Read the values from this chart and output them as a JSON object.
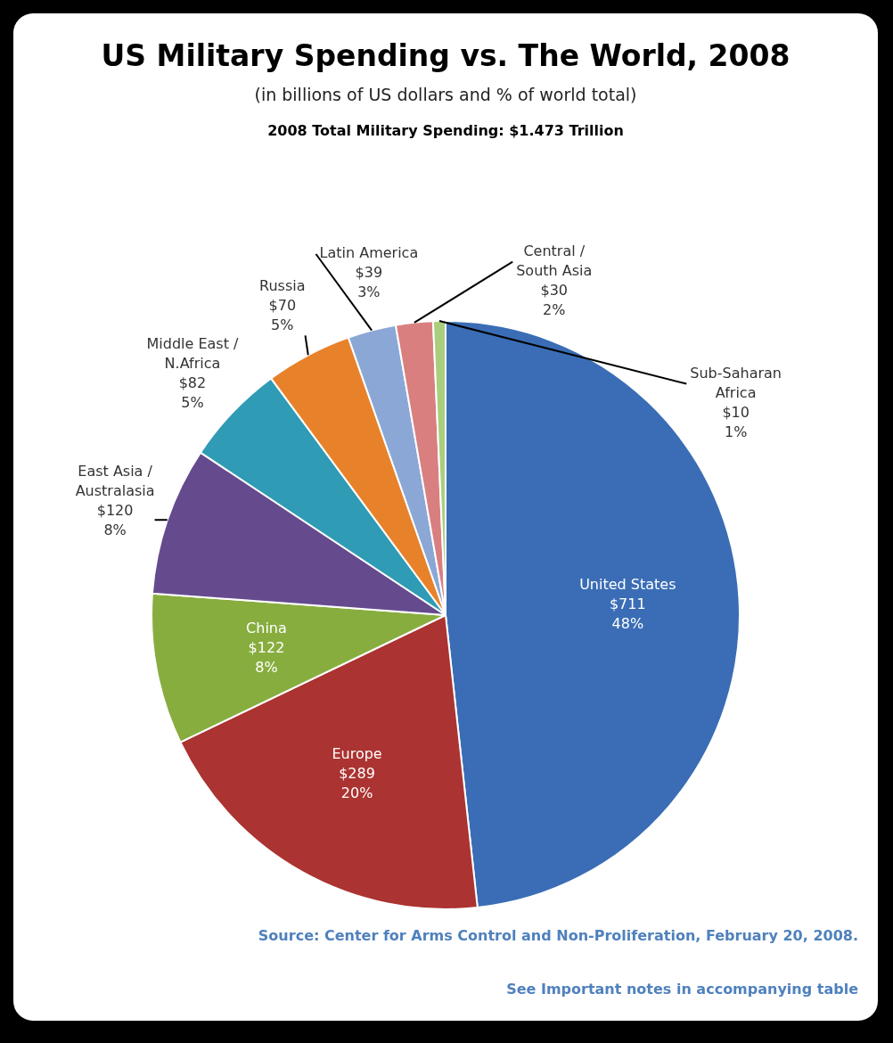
{
  "chart_data": {
    "type": "pie",
    "title": "US Military Spending vs. The World, 2008",
    "subtitle": "(in billions of US dollars and % of world total)",
    "categories": [
      "United States",
      "Europe",
      "China",
      "East Asia / Australasia",
      "Middle East / N.Africa",
      "Russia",
      "Latin America",
      "Central / South Asia",
      "Sub-Saharan Africa"
    ],
    "values": [
      711,
      289,
      122,
      120,
      82,
      70,
      39,
      30,
      10
    ],
    "colors": [
      "#3a6db5",
      "#ab3331",
      "#88ad3f",
      "#654b8e",
      "#2f9bb5",
      "#e8822a",
      "#8ba7d6",
      "#d97f80",
      "#a9cf7d"
    ],
    "value_labels": [
      "$711\n48%",
      "$289\n20%",
      "$122\n8%",
      "$120\n8%",
      "$82\n5%",
      "$70\n5%",
      "$39\n3%",
      "$30\n2%",
      "$10\n1%"
    ],
    "annotations": [
      "2008 Total Military Spending: $1.473 Trillion",
      "Source: Center for Arms Control and Non-Proliferation, February 20, 2008.",
      "See Important notes in accompanying table"
    ]
  }
}
